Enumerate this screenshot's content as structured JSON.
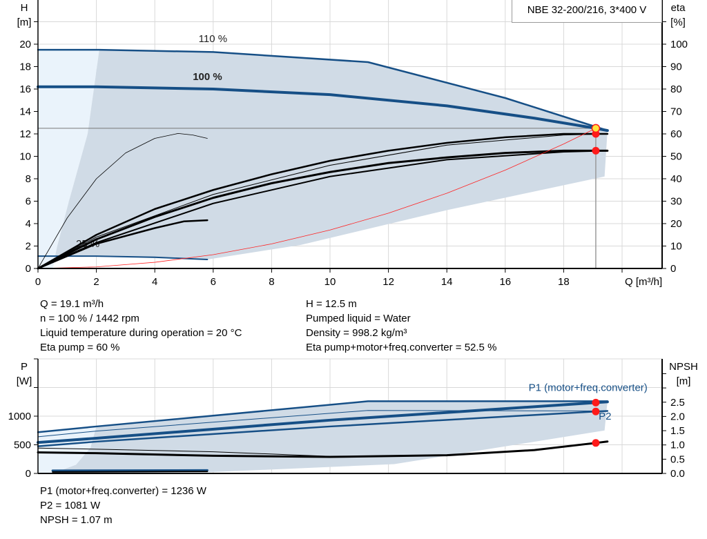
{
  "chart_data": [
    {
      "type": "line",
      "title": "NBE 32-200/216, 3*400 V",
      "xlabel": "Q [m³/h]",
      "ylabel": "H\n[m]",
      "ylabel_right": "eta\n[%]",
      "xlim": [
        0,
        21.4
      ],
      "ylim": [
        0,
        24
      ],
      "ylim_right": [
        0,
        120
      ],
      "xticks": [
        0,
        2,
        4,
        6,
        8,
        10,
        12,
        14,
        16,
        18
      ],
      "yticks": [
        0,
        2,
        4,
        6,
        8,
        10,
        12,
        14,
        16,
        18,
        20
      ],
      "yticks_right": [
        0,
        10,
        20,
        30,
        40,
        50,
        60,
        70,
        80,
        90,
        100
      ],
      "grid": true,
      "areas": [
        {
          "color": "#eaf3fb",
          "points": [
            [
              0,
              0
            ],
            [
              0.5,
              0
            ],
            [
              0.66,
              2
            ],
            [
              1.06,
              6
            ],
            [
              1.7,
              12
            ],
            [
              2.1,
              19.5
            ],
            [
              0,
              19.5
            ]
          ]
        },
        {
          "color": "#d0dbe6",
          "points": [
            [
              0.5,
              0
            ],
            [
              0.66,
              2
            ],
            [
              1.06,
              6
            ],
            [
              1.7,
              12
            ],
            [
              2.1,
              19.5
            ],
            [
              6,
              19.3
            ],
            [
              11.3,
              18.4
            ],
            [
              16,
              15.2
            ],
            [
              19.5,
              12.3
            ],
            [
              19.4,
              8.2
            ],
            [
              14,
              5.2
            ],
            [
              9,
              2.1
            ],
            [
              5.8,
              0.8
            ],
            [
              2,
              1.05
            ],
            [
              0.6,
              1.1
            ]
          ]
        }
      ],
      "series": [
        {
          "name": "110 %",
          "axis": "left",
          "color": "#164f86",
          "width": 2.5,
          "label_at": [
            5.5,
            20.2
          ],
          "values": [
            [
              0,
              19.5
            ],
            [
              2.1,
              19.5
            ],
            [
              6,
              19.3
            ],
            [
              11.3,
              18.4
            ],
            [
              16,
              15.2
            ],
            [
              19.5,
              12.3
            ]
          ]
        },
        {
          "name": "100 %",
          "axis": "left",
          "color": "#164f86",
          "width": 4,
          "bold": true,
          "label_at": [
            5.3,
            16.8
          ],
          "values": [
            [
              0,
              16.2
            ],
            [
              2,
              16.2
            ],
            [
              6,
              16.0
            ],
            [
              10,
              15.5
            ],
            [
              14,
              14.5
            ],
            [
              17,
              13.4
            ],
            [
              19.1,
              12.5
            ],
            [
              19.5,
              12.3
            ]
          ]
        },
        {
          "name": "25 %",
          "axis": "left",
          "color": "#164f86",
          "width": 2,
          "label_at": [
            1.3,
            1.9
          ],
          "values": [
            [
              0,
              1.1
            ],
            [
              2,
              1.1
            ],
            [
              4,
              1.0
            ],
            [
              5.8,
              0.8
            ]
          ]
        },
        {
          "axis": "right",
          "color": "#000",
          "width": 2.5,
          "values": [
            [
              0,
              0
            ],
            [
              2,
              15
            ],
            [
              4,
              26.5
            ],
            [
              6,
              35
            ],
            [
              8,
              42
            ],
            [
              10,
              48
            ],
            [
              12,
              52.5
            ],
            [
              14,
              56
            ],
            [
              16,
              58.5
            ],
            [
              18,
              60
            ],
            [
              19.5,
              60
            ]
          ]
        },
        {
          "axis": "right",
          "color": "#000",
          "width": 1,
          "values": [
            [
              0,
              0
            ],
            [
              2,
              14
            ],
            [
              6,
              33
            ],
            [
              10,
              46
            ],
            [
              14,
              55
            ],
            [
              18,
              59.5
            ],
            [
              19.5,
              60
            ]
          ]
        },
        {
          "axis": "right",
          "color": "#000",
          "width": 3,
          "values": [
            [
              0,
              0
            ],
            [
              2,
              13
            ],
            [
              4,
              23
            ],
            [
              6,
              31.5
            ],
            [
              8,
              38
            ],
            [
              10,
              43
            ],
            [
              12,
              47
            ],
            [
              14,
              49.5
            ],
            [
              16,
              51.5
            ],
            [
              18,
              52.5
            ],
            [
              19.5,
              52.5
            ]
          ]
        },
        {
          "axis": "right",
          "color": "#000",
          "width": 2,
          "values": [
            [
              0,
              0
            ],
            [
              2,
              11.5
            ],
            [
              6,
              29
            ],
            [
              10,
              41
            ],
            [
              14,
              48.5
            ],
            [
              18,
              52
            ],
            [
              19.5,
              52.5
            ]
          ]
        },
        {
          "axis": "right",
          "color": "#000",
          "width": 2.5,
          "values": [
            [
              0,
              0
            ],
            [
              2,
              11
            ],
            [
              4,
              18
            ],
            [
              5,
              21
            ],
            [
              5.8,
              21.5
            ]
          ]
        },
        {
          "axis": "right",
          "color": "#000",
          "width": 0.8,
          "values": [
            [
              0,
              0
            ],
            [
              1,
              22.5
            ],
            [
              2,
              40
            ],
            [
              3,
              51.5
            ],
            [
              4,
              58
            ],
            [
              4.8,
              60.2
            ],
            [
              5.3,
              59.5
            ],
            [
              5.8,
              58
            ]
          ]
        },
        {
          "axis": "left",
          "color": "#ff2020",
          "width": 0.8,
          "values": [
            [
              0,
              0
            ],
            [
              2,
              0.14
            ],
            [
              4,
              0.55
            ],
            [
              6,
              1.23
            ],
            [
              8,
              2.19
            ],
            [
              10,
              3.43
            ],
            [
              12,
              4.93
            ],
            [
              14,
              6.71
            ],
            [
              16,
              8.77
            ],
            [
              18,
              11.1
            ],
            [
              19.1,
              12.5
            ]
          ]
        }
      ],
      "duty_point": {
        "q": 19.1,
        "h": 12.5
      },
      "points": [
        {
          "axis": "right",
          "x": 19.1,
          "y": 60,
          "color": "#ff1a1a"
        },
        {
          "axis": "right",
          "x": 19.1,
          "y": 52.5,
          "color": "#ff1a1a"
        },
        {
          "axis": "left",
          "x": 19.1,
          "y": 12.5,
          "color": "#ffe23a",
          "stroke": "#ff1a1a"
        }
      ]
    },
    {
      "type": "line",
      "ylabel": "P\n[W]",
      "ylabel_right": "NPSH\n[m]",
      "xlim": [
        0,
        21.4
      ],
      "ylim": [
        0,
        2000
      ],
      "ylim_right": [
        0,
        4.02
      ],
      "yticks": [
        0,
        500,
        1000,
        1500,
        2000
      ],
      "yticks_labeled": [
        0,
        500,
        1000
      ],
      "yticks_right": [
        0,
        0.5,
        1,
        1.5,
        2,
        2.5,
        3,
        3.5
      ],
      "yticks_right_labeled": [
        "0.0",
        "0.5",
        "1.0",
        "1.5",
        "2.0",
        "2.5"
      ],
      "grid": true,
      "areas": [
        {
          "color": "#eaf3fb",
          "points": [
            [
              0,
              0
            ],
            [
              0.5,
              0
            ],
            [
              1.3,
              150
            ],
            [
              1.8,
              450
            ],
            [
              2,
              820
            ],
            [
              0,
              720
            ]
          ]
        },
        {
          "color": "#d0dbe6",
          "points": [
            [
              0.5,
              0
            ],
            [
              1.3,
              150
            ],
            [
              1.8,
              450
            ],
            [
              2,
              820
            ],
            [
              11.3,
              1260
            ],
            [
              19.5,
              1260
            ],
            [
              19.4,
              750
            ],
            [
              12.2,
              162
            ],
            [
              5.8,
              20
            ]
          ]
        }
      ],
      "series": [
        {
          "axis": "left",
          "color": "#164f86",
          "width": 2.5,
          "values": [
            [
              0,
              720
            ],
            [
              2,
              820
            ],
            [
              11.3,
              1260
            ],
            [
              19.5,
              1260
            ]
          ]
        },
        {
          "axis": "left",
          "color": "#164f86",
          "width": 1,
          "values": [
            [
              0,
              640
            ],
            [
              2,
              740
            ],
            [
              11.3,
              1100
            ],
            [
              19.5,
              1090
            ]
          ]
        },
        {
          "name": "P1 (motor+freq.converter)",
          "axis": "left",
          "color": "#164f86",
          "width": 4,
          "label_at": [
            16.8,
            1440
          ],
          "values": [
            [
              0,
              540
            ],
            [
              2,
              615
            ],
            [
              10,
              930
            ],
            [
              19.1,
              1236
            ],
            [
              19.5,
              1250
            ]
          ]
        },
        {
          "name": "P2",
          "axis": "left",
          "color": "#164f86",
          "width": 2.5,
          "label_at": [
            19.2,
            940
          ],
          "values": [
            [
              0,
              475
            ],
            [
              2,
              555
            ],
            [
              10,
              820
            ],
            [
              19.1,
              1081
            ],
            [
              19.5,
              1090
            ]
          ]
        },
        {
          "axis": "left",
          "color": "#164f86",
          "width": 3,
          "values": [
            [
              0.5,
              50
            ],
            [
              5.8,
              55
            ]
          ]
        },
        {
          "axis": "left",
          "color": "#000",
          "width": 2,
          "values": [
            [
              0.5,
              25
            ],
            [
              5.8,
              35
            ]
          ]
        },
        {
          "axis": "right",
          "color": "#000",
          "width": 1,
          "values": [
            [
              0,
              0.89
            ],
            [
              2,
              0.85
            ],
            [
              6,
              0.76
            ],
            [
              10,
              0.6
            ]
          ]
        },
        {
          "axis": "right",
          "color": "#000",
          "width": 3,
          "values": [
            [
              0,
              0.74
            ],
            [
              2,
              0.71
            ],
            [
              6,
              0.62
            ],
            [
              10,
              0.58
            ],
            [
              14,
              0.64
            ],
            [
              17,
              0.82
            ],
            [
              19.1,
              1.07
            ],
            [
              19.5,
              1.12
            ]
          ]
        }
      ],
      "points": [
        {
          "axis": "left",
          "x": 19.1,
          "y": 1236,
          "color": "#ff1a1a"
        },
        {
          "axis": "left",
          "x": 19.1,
          "y": 1081,
          "color": "#ff1a1a"
        },
        {
          "axis": "right",
          "x": 19.1,
          "y": 1.07,
          "color": "#ff1a1a"
        }
      ]
    }
  ],
  "results_top": {
    "left": [
      "Q = 19.1 m³/h",
      "n = 100 % / 1442 rpm",
      "Liquid temperature during operation = 20 °C",
      "Eta pump = 60 %"
    ],
    "right": [
      "H = 12.5 m",
      "Pumped liquid = Water",
      "Density = 998.2 kg/m³",
      "Eta pump+motor+freq.converter = 52.5 %"
    ]
  },
  "results_bottom": [
    "P1 (motor+freq.converter) = 1236 W",
    "P2 = 1081 W",
    "NPSH = 1.07 m"
  ]
}
